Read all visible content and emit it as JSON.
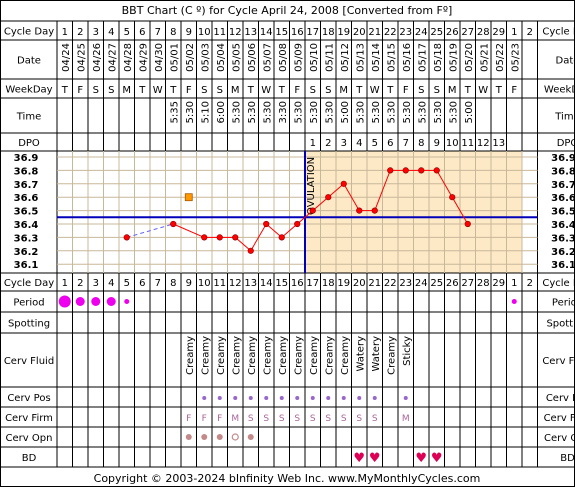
{
  "title": "BBT Chart (C º) for Cycle April 24, 2008  [Converted from Fº]",
  "footer": "Copyright © 2003-2024 bInfinity Web Inc.    www.MyMonthlyCycles.com",
  "row_labels": {
    "cycle_day": "Cycle Day",
    "date": "Date",
    "weekday": "WeekDay",
    "time": "Time",
    "dpo": "DPO",
    "period": "Period",
    "spotting": "Spotting",
    "cerv_fluid": "Cerv Fluid",
    "cerv_pos": "Cerv Pos",
    "cerv_firm": "Cerv Firm",
    "cerv_opn": "Cerv Opn",
    "bd": "BD"
  },
  "ovulation_label": "OVULATION",
  "colors": {
    "temp_line": "#ff0000",
    "coverline": "#0000bb",
    "pre_ovulation_bg": "#ffffff",
    "post_ovulation_bg": "#fde9c6",
    "period_dot": "#ee00ee",
    "heart": "#dd0055",
    "cervix_dot": "#9966cc",
    "firm_letter": "#aa6699"
  },
  "chart_data": {
    "type": "line",
    "cycle_days": [
      "1",
      "2",
      "3",
      "4",
      "5",
      "6",
      "7",
      "8",
      "9",
      "10",
      "11",
      "12",
      "13",
      "14",
      "15",
      "16",
      "17",
      "18",
      "19",
      "20",
      "21",
      "22",
      "23",
      "24",
      "25",
      "26",
      "27",
      "28",
      "29",
      "1",
      "2"
    ],
    "dates": [
      "04/24",
      "04/25",
      "04/26",
      "04/27",
      "04/28",
      "04/29",
      "04/30",
      "05/01",
      "05/02",
      "05/03",
      "05/04",
      "05/05",
      "05/06",
      "05/07",
      "05/08",
      "05/09",
      "05/10",
      "05/11",
      "05/12",
      "05/13",
      "05/14",
      "05/15",
      "05/16",
      "05/17",
      "05/18",
      "05/19",
      "05/20",
      "05/21",
      "05/22",
      "05/23",
      ""
    ],
    "weekdays": [
      "T",
      "F",
      "S",
      "S",
      "M",
      "T",
      "W",
      "T",
      "F",
      "S",
      "S",
      "M",
      "T",
      "W",
      "T",
      "F",
      "S",
      "S",
      "M",
      "T",
      "W",
      "T",
      "F",
      "S",
      "S",
      "M",
      "T",
      "W",
      "T",
      "F",
      ""
    ],
    "times": [
      "",
      "",
      "",
      "",
      "",
      "",
      "",
      "5:35",
      "5:30",
      "5:10",
      "6:00",
      "5:30",
      "5:30",
      "5:30",
      "3:30",
      "5:30",
      "5:30",
      "5:30",
      "5:00",
      "5:30",
      "5:30",
      "5:30",
      "5:30",
      "5:30",
      "5:30",
      "5:30",
      "5:00",
      "",
      "",
      "",
      ""
    ],
    "dpo": [
      "",
      "",
      "",
      "",
      "",
      "",
      "",
      "",
      "",
      "",
      "",
      "",
      "",
      "",
      "",
      "",
      "1",
      "2",
      "3",
      "4",
      "5",
      "6",
      "7",
      "8",
      "9",
      "10",
      "11",
      "12",
      "13",
      "",
      ""
    ],
    "temps": [
      null,
      null,
      null,
      null,
      36.3,
      null,
      null,
      36.4,
      null,
      36.3,
      36.3,
      36.3,
      36.2,
      36.4,
      36.3,
      36.4,
      36.5,
      36.6,
      36.7,
      36.5,
      36.5,
      36.8,
      36.8,
      36.8,
      36.8,
      36.6,
      36.4,
      null,
      null,
      null,
      null
    ],
    "dashed_gap_days": [
      5,
      8
    ],
    "open_square": {
      "day": 9,
      "value": 36.6
    },
    "y_ticks": [
      36.9,
      36.8,
      36.7,
      36.6,
      36.5,
      36.4,
      36.3,
      36.2,
      36.1
    ],
    "ylim": [
      36.05,
      36.95
    ],
    "coverline": 36.45,
    "ovulation_day": 16,
    "period": [
      3,
      2,
      2,
      2,
      1,
      0,
      0,
      0,
      0,
      0,
      0,
      0,
      0,
      0,
      0,
      0,
      0,
      0,
      0,
      0,
      0,
      0,
      0,
      0,
      0,
      0,
      0,
      0,
      0,
      1,
      0
    ],
    "cerv_fluid": [
      "",
      "",
      "",
      "",
      "",
      "",
      "",
      "",
      "Creamy",
      "Creamy",
      "Creamy",
      "Creamy",
      "Creamy",
      "Creamy",
      "Creamy",
      "Creamy",
      "Creamy",
      "Creamy",
      "Creamy",
      "Watery",
      "Watery",
      "Creamy",
      "Sticky",
      "",
      "",
      "",
      "",
      "",
      "",
      "",
      ""
    ],
    "cerv_pos": [
      0,
      0,
      0,
      0,
      0,
      0,
      0,
      0,
      0,
      1,
      1,
      1,
      1,
      1,
      1,
      1,
      1,
      1,
      1,
      1,
      1,
      0,
      1,
      0,
      0,
      0,
      0,
      0,
      0,
      0,
      0
    ],
    "cerv_firm": [
      "",
      "",
      "",
      "",
      "",
      "",
      "",
      "",
      "F",
      "F",
      "F",
      "M",
      "S",
      "S",
      "S",
      "S",
      "S",
      "S",
      "S",
      "S",
      "S",
      "",
      "M",
      "",
      "",
      "",
      "",
      "",
      "",
      "",
      ""
    ],
    "cerv_opn": [
      0,
      0,
      0,
      0,
      0,
      0,
      0,
      0,
      1,
      1,
      1,
      2,
      1,
      0,
      0,
      0,
      0,
      0,
      0,
      0,
      0,
      0,
      0,
      0,
      0,
      0,
      0,
      0,
      0,
      0,
      0
    ],
    "bd": [
      0,
      0,
      0,
      0,
      0,
      0,
      0,
      0,
      0,
      0,
      0,
      0,
      0,
      0,
      0,
      0,
      0,
      0,
      0,
      1,
      1,
      0,
      0,
      1,
      1,
      0,
      0,
      0,
      0,
      0,
      0
    ]
  }
}
